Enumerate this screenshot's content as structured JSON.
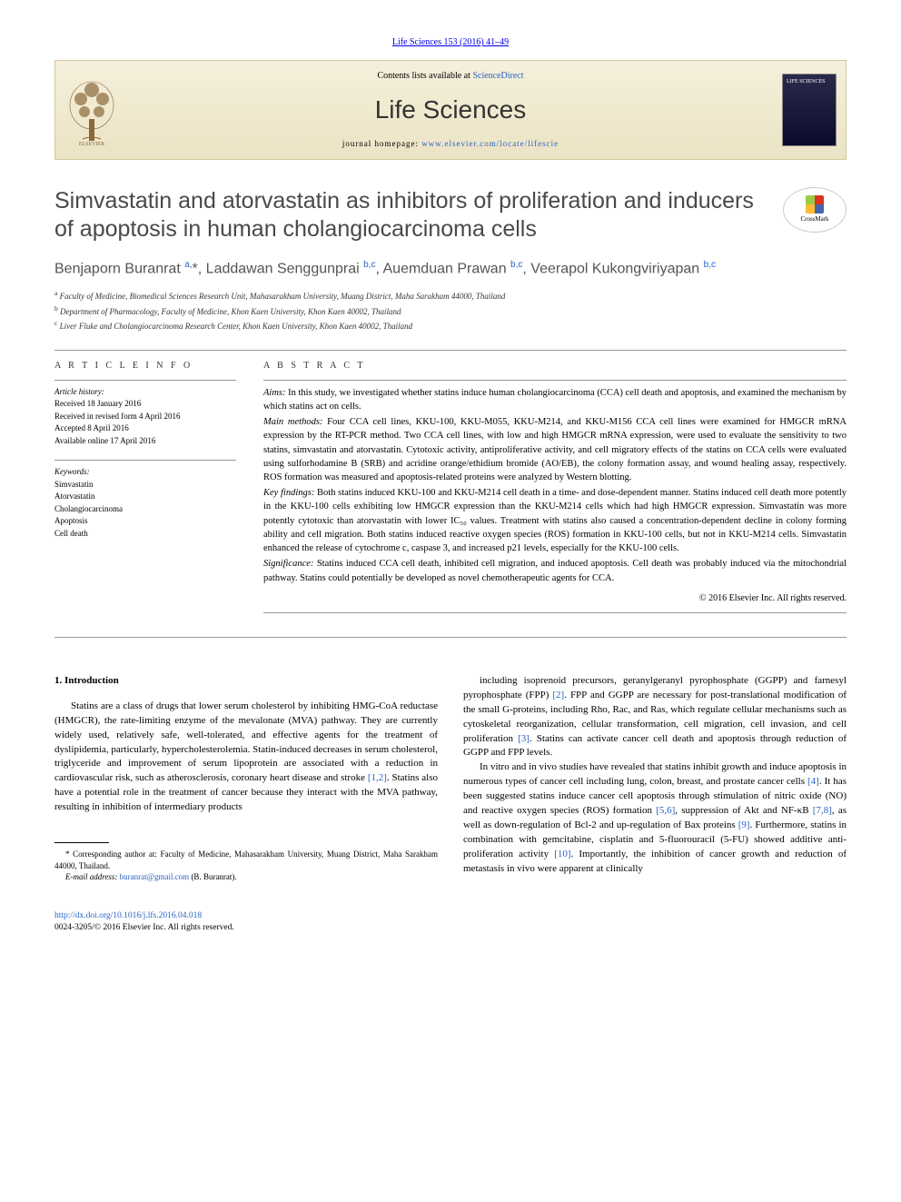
{
  "journal_ref": {
    "text": "Life Sciences 153 (2016) 41–49",
    "link_color": "#2962c4"
  },
  "header": {
    "contents_prefix": "Contents lists available at ",
    "contents_link": "ScienceDirect",
    "journal_name": "Life Sciences",
    "homepage_prefix": "journal homepage: ",
    "homepage_link": "www.elsevier.com/locate/lifescie",
    "cover_label": "LIFE SCIENCES",
    "bg_gradient_top": "#f5f0dc",
    "bg_gradient_bottom": "#ebe3c4",
    "border_color": "#d4c89a"
  },
  "crossmark_label": "CrossMark",
  "article": {
    "title": "Simvastatin and atorvastatin as inhibitors of proliferation and inducers of apoptosis in human cholangiocarcinoma cells",
    "title_fontsize": 25,
    "title_color": "#494949",
    "authors_html": "Benjaporn Buranrat <sup>a,</sup><span class='star'>*</span>, Laddawan Senggunprai <sup>b,c</sup>, Auemduan Prawan <sup>b,c</sup>, Veerapol Kukongviriyapan <sup>b,c</sup>",
    "authors_fontsize": 16,
    "affiliations": [
      {
        "sup": "a",
        "text": "Faculty of Medicine, Biomedical Sciences Research Unit, Mahasarakham University, Muang District, Maha Sarakham 44000, Thailand"
      },
      {
        "sup": "b",
        "text": "Department of Pharmacology, Faculty of Medicine, Khon Kaen University, Khon Kaen 40002, Thailand"
      },
      {
        "sup": "c",
        "text": "Liver Fluke and Cholangiocarcinoma Research Center, Khon Kaen University, Khon Kaen 40002, Thailand"
      }
    ]
  },
  "article_info": {
    "label": "A R T I C L E   I N F O",
    "history_label": "Article history:",
    "history": [
      "Received 18 January 2016",
      "Received in revised form 4 April 2016",
      "Accepted 8 April 2016",
      "Available online 17 April 2016"
    ],
    "keywords_label": "Keywords:",
    "keywords": [
      "Simvastatin",
      "Atorvastatin",
      "Cholangiocarcinoma",
      "Apoptosis",
      "Cell death"
    ]
  },
  "abstract": {
    "label": "A B S T R A C T",
    "paragraphs": [
      {
        "lead": "Aims:",
        "text": " In this study, we investigated whether statins induce human cholangiocarcinoma (CCA) cell death and apoptosis, and examined the mechanism by which statins act on cells."
      },
      {
        "lead": "Main methods:",
        "text": " Four CCA cell lines, KKU-100, KKU-M055, KKU-M214, and KKU-M156 CCA cell lines were examined for HMGCR mRNA expression by the RT-PCR method. Two CCA cell lines, with low and high HMGCR mRNA expression, were used to evaluate the sensitivity to two statins, simvastatin and atorvastatin. Cytotoxic activity, antiproliferative activity, and cell migratory effects of the statins on CCA cells were evaluated using sulforhodamine B (SRB) and acridine orange/ethidium bromide (AO/EB), the colony formation assay, and wound healing assay, respectively. ROS formation was measured and apoptosis-related proteins were analyzed by Western blotting."
      },
      {
        "lead": "Key findings:",
        "text": " Both statins induced KKU-100 and KKU-M214 cell death in a time- and dose-dependent manner. Statins induced cell death more potently in the KKU-100 cells exhibiting low HMGCR expression than the KKU-M214 cells which had high HMGCR expression. Simvastatin was more potently cytotoxic than atorvastatin with lower IC₅₀ values. Treatment with statins also caused a concentration-dependent decline in colony forming ability and cell migration. Both statins induced reactive oxygen species (ROS) formation in KKU-100 cells, but not in KKU-M214 cells. Simvastatin enhanced the release of cytochrome c, caspase 3, and increased p21 levels, especially for the KKU-100 cells."
      },
      {
        "lead": "Significance:",
        "text": " Statins induced CCA cell death, inhibited cell migration, and induced apoptosis. Cell death was probably induced via the mitochondrial pathway. Statins could potentially be developed as novel chemotherapeutic agents for CCA."
      }
    ],
    "copyright": "© 2016 Elsevier Inc. All rights reserved."
  },
  "body": {
    "heading": "1. Introduction",
    "col1_paras": [
      "Statins are a class of drugs that lower serum cholesterol by inhibiting HMG-CoA reductase (HMGCR), the rate-limiting enzyme of the mevalonate (MVA) pathway. They are currently widely used, relatively safe, well-tolerated, and effective agents for the treatment of dyslipidemia, particularly, hypercholesterolemia. Statin-induced decreases in serum cholesterol, triglyceride and improvement of serum lipoprotein are associated with a reduction in cardiovascular risk, such as atherosclerosis, coronary heart disease and stroke <a href='#' data-name='reference-link' data-interactable='true'>[1,2]</a>. Statins also have a potential role in the treatment of cancer because they interact with the MVA pathway, resulting in inhibition of intermediary products"
    ],
    "col2_paras": [
      "including isoprenoid precursors, geranylgeranyl pyrophosphate (GGPP) and farnesyl pyrophosphate (FPP) <a href='#' data-name='reference-link' data-interactable='true'>[2]</a>. FPP and GGPP are necessary for post-translational modification of the small G-proteins, including Rho, Rac, and Ras, which regulate cellular mechanisms such as cytoskeletal reorganization, cellular transformation, cell migration, cell invasion, and cell proliferation <a href='#' data-name='reference-link' data-interactable='true'>[3]</a>. Statins can activate cancer cell death and apoptosis through reduction of GGPP and FPP levels.",
      "In vitro and in vivo studies have revealed that statins inhibit growth and induce apoptosis in numerous types of cancer cell including lung, colon, breast, and prostate cancer cells <a href='#' data-name='reference-link' data-interactable='true'>[4]</a>. It has been suggested statins induce cancer cell apoptosis through stimulation of nitric oxide (NO) and reactive oxygen species (ROS) formation <a href='#' data-name='reference-link' data-interactable='true'>[5,6]</a>, suppression of Akt and NF-κB <a href='#' data-name='reference-link' data-interactable='true'>[7,8]</a>, as well as down-regulation of Bcl-2 and up-regulation of Bax proteins <a href='#' data-name='reference-link' data-interactable='true'>[9]</a>. Furthermore, statins in combination with gemcitabine, cisplatin and 5-fluorouracil (5-FU) showed additive anti-proliferation activity <a href='#' data-name='reference-link' data-interactable='true'>[10]</a>. Importantly, the inhibition of cancer growth and reduction of metastasis in vivo were apparent at clinically"
    ]
  },
  "footnote": {
    "corr": "* Corresponding author at: Faculty of Medicine, Mahasarakham University, Muang District, Maha Sarakham 44000, Thailand.",
    "email_label": "E-mail address: ",
    "email": "buranrat@gmail.com",
    "email_suffix": " (B. Buranrat)."
  },
  "footer": {
    "doi": "http://dx.doi.org/10.1016/j.lfs.2016.04.018",
    "issn_copy": "0024-3205/© 2016 Elsevier Inc. All rights reserved."
  },
  "colors": {
    "link": "#2962c4",
    "text": "#000000",
    "title": "#494949",
    "rule": "#999999"
  }
}
